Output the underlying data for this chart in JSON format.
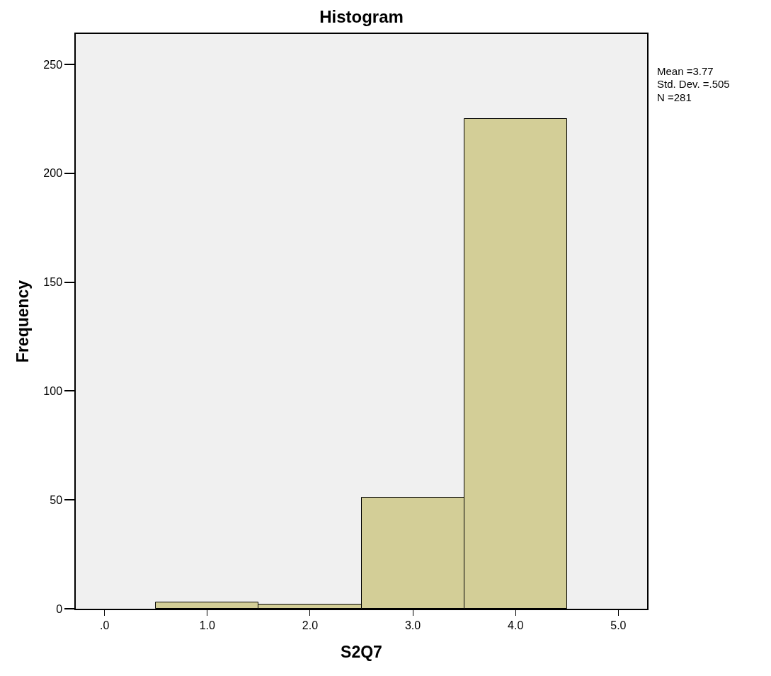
{
  "chart_data": {
    "type": "histogram",
    "title": "Histogram",
    "xlabel": "S2Q7",
    "ylabel": "Frequency",
    "bins": [
      0.5,
      1.5,
      2.5,
      3.5,
      4.5
    ],
    "values": [
      3,
      2,
      51,
      225
    ],
    "color": "#d3ce97",
    "xlim": [
      -0.28,
      5.28
    ],
    "xticks": [
      {
        "value": 0,
        "label": ".0"
      },
      {
        "value": 1,
        "label": "1.0"
      },
      {
        "value": 2,
        "label": "2.0"
      },
      {
        "value": 3,
        "label": "3.0"
      },
      {
        "value": 4,
        "label": "4.0"
      },
      {
        "value": 5,
        "label": "5.0"
      }
    ],
    "ylim": [
      0,
      264
    ],
    "yticks": [
      0,
      50,
      100,
      150,
      200,
      250
    ],
    "grid": false,
    "annotations": [
      "Mean =3.77",
      "Std. Dev. =.505",
      "N =281"
    ]
  }
}
